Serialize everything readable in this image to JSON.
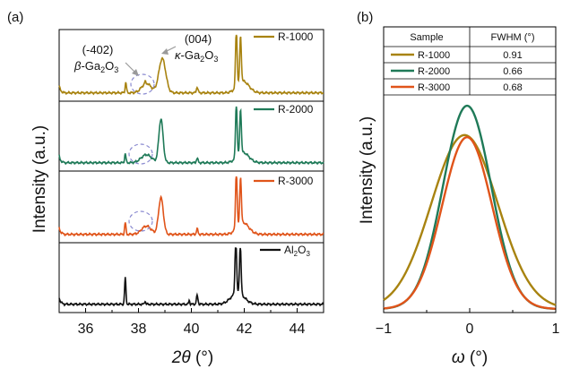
{
  "chart_data": [
    {
      "type": "line",
      "panel_label": "(a)",
      "xlabel_symbol": "2θ",
      "xlabel_unit": " (°)",
      "ylabel": "Intensity (a.u.)",
      "xlim": [
        35,
        45
      ],
      "ylim": [
        0,
        1
      ],
      "xticks": [
        36,
        38,
        40,
        42,
        44
      ],
      "stacked": true,
      "series": [
        {
          "name": "R-1000",
          "color": "#a88310",
          "sharp": [
            [
              37.52,
              0.18,
              0.025
            ],
            [
              38.25,
              0.04,
              0.02
            ],
            [
              40.22,
              0.1,
              0.03
            ],
            [
              41.7,
              0.98,
              0.03
            ],
            [
              41.86,
              0.78,
              0.03
            ]
          ],
          "broad": [
            [
              38.9,
              0.58,
              0.13
            ],
            [
              38.3,
              0.16,
              0.18
            ],
            [
              41.95,
              0.2,
              0.22
            ]
          ]
        },
        {
          "name": "R-2000",
          "color": "#1f7a58",
          "sharp": [
            [
              37.5,
              0.16,
              0.025
            ],
            [
              40.22,
              0.08,
              0.03
            ],
            [
              41.7,
              0.96,
              0.03
            ],
            [
              41.86,
              0.78,
              0.03
            ]
          ],
          "broad": [
            [
              38.85,
              0.76,
              0.08
            ],
            [
              38.3,
              0.14,
              0.2
            ],
            [
              41.95,
              0.18,
              0.22
            ]
          ]
        },
        {
          "name": "R-3000",
          "color": "#e0541a",
          "sharp": [
            [
              37.5,
              0.2,
              0.025
            ],
            [
              40.22,
              0.09,
              0.03
            ],
            [
              41.7,
              0.98,
              0.03
            ],
            [
              41.86,
              0.8,
              0.03
            ]
          ],
          "broad": [
            [
              38.85,
              0.62,
              0.09
            ],
            [
              38.3,
              0.14,
              0.18
            ],
            [
              41.95,
              0.2,
              0.22
            ]
          ]
        },
        {
          "name": "Al2O3",
          "name_base": "Al",
          "name_sub1": "2",
          "name_mid": "O",
          "name_sub2": "3",
          "color": "#111111",
          "sharp": [
            [
              37.5,
              0.46,
              0.025
            ],
            [
              38.25,
              0.06,
              0.02
            ],
            [
              39.92,
              0.07,
              0.02
            ],
            [
              40.22,
              0.15,
              0.03
            ],
            [
              41.68,
              0.97,
              0.03
            ],
            [
              41.85,
              0.86,
              0.03
            ]
          ],
          "broad": [
            [
              41.75,
              0.2,
              0.25
            ]
          ]
        }
      ],
      "annotations": [
        {
          "miller": "(-402)",
          "phase_greek": "β",
          "phase_rest": "-Ga",
          "sub1": "2",
          "mid": "O",
          "sub2": "3"
        },
        {
          "miller": "(004)",
          "phase_greek": "κ",
          "phase_rest": "-Ga",
          "sub1": "2",
          "mid": "O",
          "sub2": "3"
        }
      ]
    },
    {
      "type": "line",
      "panel_label": "(b)",
      "xlabel_symbol": "ω",
      "xlabel_unit": " (°)",
      "ylabel": "Intensity (a.u.)",
      "xlim": [
        -1,
        1
      ],
      "ylim": [
        0,
        1
      ],
      "xticks": [
        -1,
        0,
        1
      ],
      "xtick_labels": [
        "−1",
        "0",
        "1"
      ],
      "series": [
        {
          "name": "R-1000",
          "color": "#a88310",
          "center": -0.06,
          "peak": 0.83,
          "fwhm": 0.91
        },
        {
          "name": "R-2000",
          "color": "#1f7a58",
          "center": -0.03,
          "peak": 0.97,
          "fwhm": 0.66
        },
        {
          "name": "R-3000",
          "color": "#e0541a",
          "center": -0.03,
          "peak": 0.82,
          "fwhm": 0.68
        }
      ],
      "table": {
        "headers": [
          "Sample",
          "FWHM (°)"
        ],
        "rows": [
          [
            "R-1000",
            "0.91"
          ],
          [
            "R-2000",
            "0.66"
          ],
          [
            "R-3000",
            "0.68"
          ]
        ]
      }
    }
  ]
}
